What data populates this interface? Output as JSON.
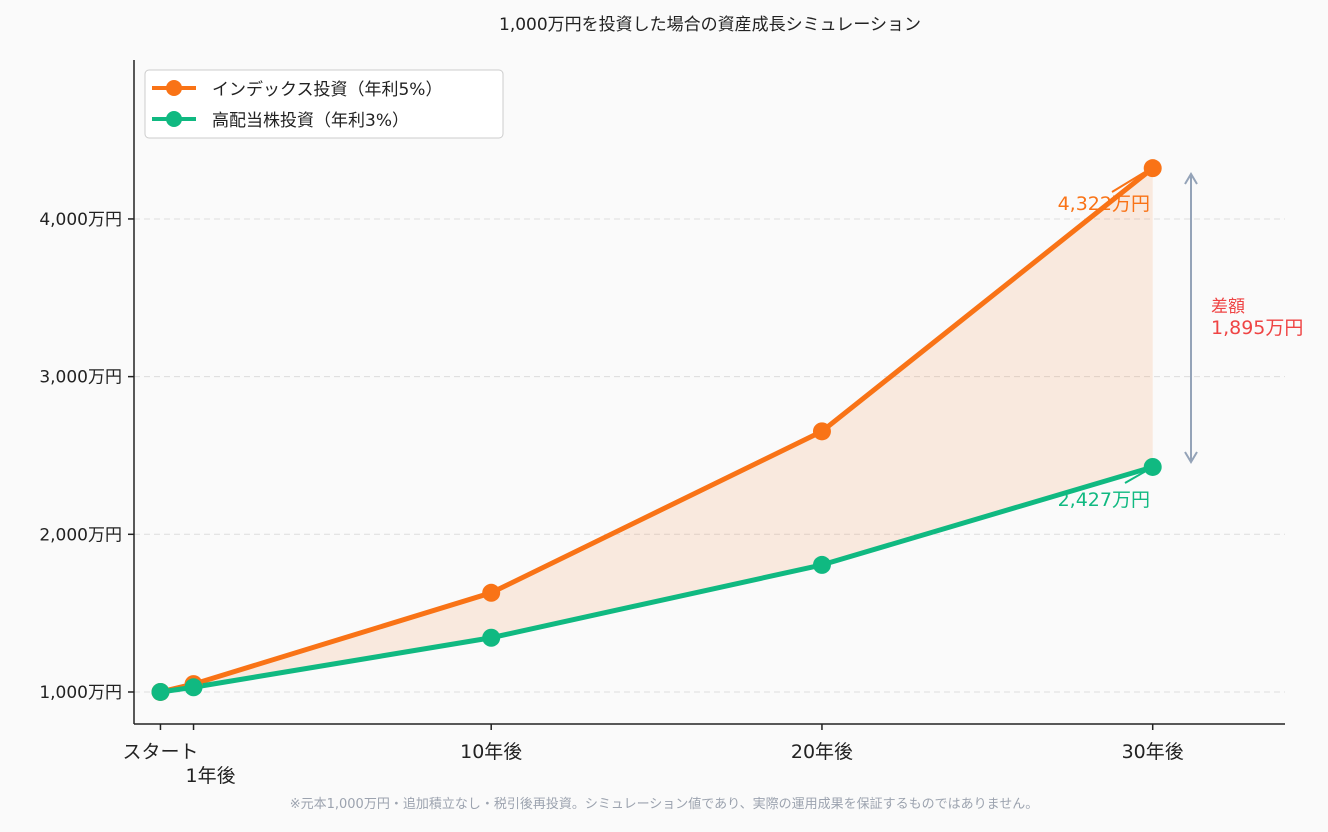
{
  "chart_data": {
    "type": "line",
    "title": "1,000万円を投資した場合の資産成長シミュレーション",
    "xlabel": "",
    "ylabel": "",
    "x": [
      0,
      1,
      10,
      20,
      30
    ],
    "x_tick_labels": [
      "スタート",
      "1年後",
      "10年後",
      "20年後",
      "30年後"
    ],
    "y_ticks": [
      1000,
      2000,
      3000,
      4000
    ],
    "y_tick_labels": [
      "1,000万円",
      "2,000万円",
      "3,000万円",
      "4,000万円"
    ],
    "ylim": [
      797,
      5008
    ],
    "xlim": [
      -0.8,
      34
    ],
    "grid": "horizontal dashed",
    "legend_position": "top-left",
    "series": [
      {
        "name": "インデックス投資（年利5%）",
        "color": "#f97316",
        "values": [
          1000,
          1050,
          1629,
          2653,
          4322
        ]
      },
      {
        "name": "高配当株投資（年利3%）",
        "color": "#10b981",
        "values": [
          1000,
          1030,
          1344,
          1806,
          2427
        ]
      }
    ],
    "fill_between_color": "#f97316",
    "annotations": {
      "end_label_index": "4,322万円",
      "end_label_dividend": "2,427万円",
      "difference_label": "差額",
      "difference_value": "1,895万円",
      "difference_color": "#ef4444",
      "arrow_color": "#94a3b8"
    },
    "footnote": "※元本1,000万円・追加積立なし・税引後再投資。シミュレーション値であり、実際の運用成果を保証するものではありません。"
  }
}
